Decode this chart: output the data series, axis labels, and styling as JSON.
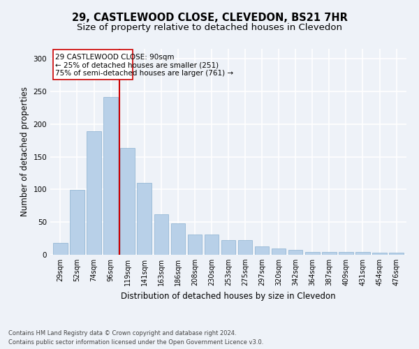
{
  "title": "29, CASTLEWOOD CLOSE, CLEVEDON, BS21 7HR",
  "subtitle": "Size of property relative to detached houses in Clevedon",
  "xlabel": "Distribution of detached houses by size in Clevedon",
  "ylabel": "Number of detached properties",
  "footer_line1": "Contains HM Land Registry data © Crown copyright and database right 2024.",
  "footer_line2": "Contains public sector information licensed under the Open Government Licence v3.0.",
  "categories": [
    "29sqm",
    "52sqm",
    "74sqm",
    "96sqm",
    "119sqm",
    "141sqm",
    "163sqm",
    "186sqm",
    "208sqm",
    "230sqm",
    "253sqm",
    "275sqm",
    "297sqm",
    "320sqm",
    "342sqm",
    "364sqm",
    "387sqm",
    "409sqm",
    "431sqm",
    "454sqm",
    "476sqm"
  ],
  "bar_values": [
    18,
    99,
    189,
    241,
    163,
    110,
    62,
    48,
    31,
    31,
    22,
    22,
    13,
    10,
    8,
    4,
    4,
    4,
    4,
    3,
    3
  ],
  "bar_color": "#b8d0e8",
  "bar_edge_color": "#8ab0d0",
  "vline_x": 3.5,
  "vline_color": "#cc0000",
  "annotation_line1": "29 CASTLEWOOD CLOSE: 90sqm",
  "annotation_line2": "← 25% of detached houses are smaller (251)",
  "annotation_line3": "75% of semi-detached houses are larger (761) →",
  "ylim": [
    0,
    315
  ],
  "yticks": [
    0,
    50,
    100,
    150,
    200,
    250,
    300
  ],
  "background_color": "#eef2f8",
  "grid_color": "#ffffff",
  "title_fontsize": 10.5,
  "subtitle_fontsize": 9.5,
  "xlabel_fontsize": 8.5,
  "ylabel_fontsize": 8.5,
  "tick_fontsize": 7,
  "annotation_fontsize": 7.5,
  "footer_fontsize": 6
}
